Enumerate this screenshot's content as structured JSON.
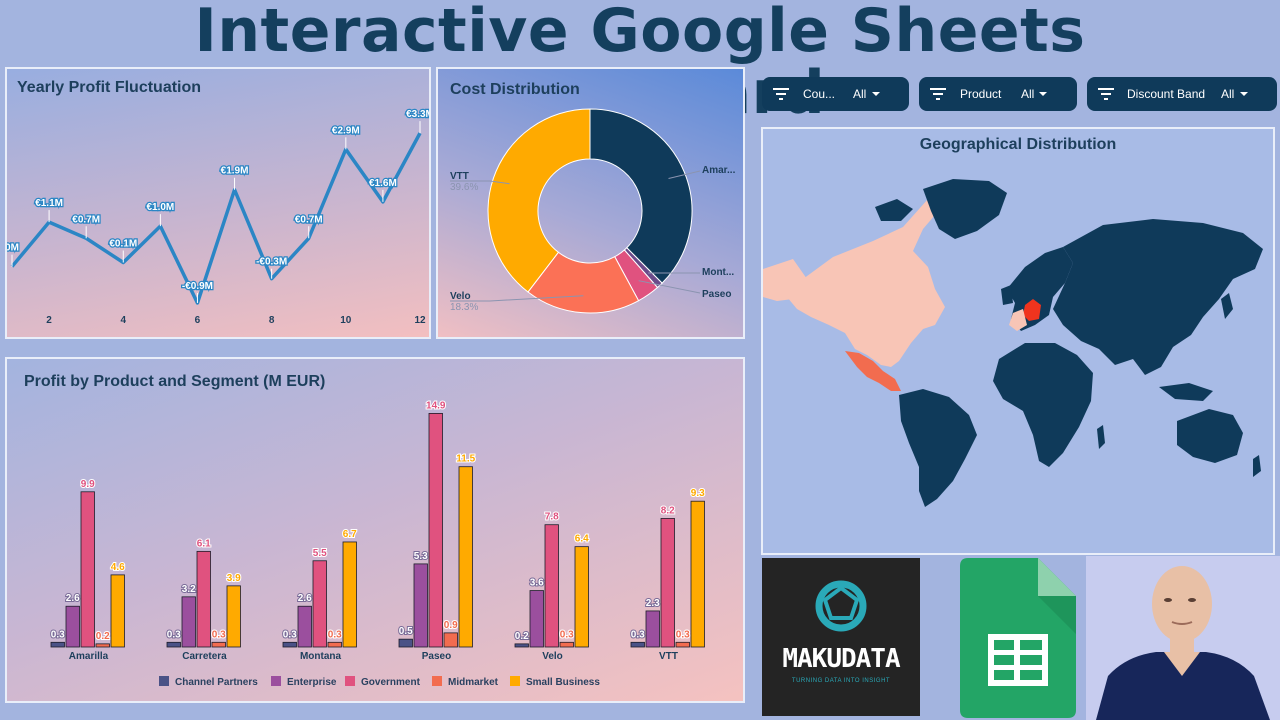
{
  "header": {
    "title": "Interactive Google Sheets Dashboard"
  },
  "filters": [
    {
      "label": "Cou...",
      "value": "All"
    },
    {
      "label": "Product",
      "value": "All"
    },
    {
      "label": "Discount Band",
      "value": "All"
    }
  ],
  "line_card": {
    "title": "Yearly Profit Fluctuation"
  },
  "donut_card": {
    "title": "Cost Distribution"
  },
  "bar_card": {
    "title": "Profit by Product and Segment (M EUR)"
  },
  "map_card": {
    "title": "Geographical Distribution"
  },
  "logo": {
    "name": "MAKUDATA",
    "tagline": "TURNING DATA INTO INSIGHT"
  },
  "colors": {
    "navy": "#0f3a5a",
    "line": "#2b86c5",
    "channel_partners": "#4a5286",
    "enterprise": "#9b4f9e",
    "government": "#e0527f",
    "midmarket": "#f26c4f",
    "small_business": "#ffaa00",
    "donut_amarilla": "#0f3a5a",
    "donut_vtt": "#ffaa00",
    "donut_velo": "#fb7156",
    "donut_paseo": "#e0527f",
    "donut_montana": "#6b4b8a"
  },
  "chart_data": [
    {
      "type": "line",
      "title": "Yearly Profit Fluctuation",
      "x": [
        1,
        2,
        3,
        4,
        5,
        6,
        7,
        8,
        9,
        10,
        11,
        12
      ],
      "values": [
        0,
        1.1,
        0.7,
        0.1,
        1.0,
        -0.9,
        1.9,
        -0.3,
        0.7,
        2.9,
        1.6,
        3.3
      ],
      "labels": [
        "0M",
        "€1.1M",
        "€0.7M",
        "€0.1M",
        "€1.0M",
        "-€0.9M",
        "€1.9M",
        "-€0.3M",
        "€0.7M",
        "€2.9M",
        "€1.6M",
        "€3.3M"
      ],
      "x_ticks": [
        2,
        4,
        6,
        8,
        10,
        12
      ],
      "ylim": [
        -1.0,
        3.6
      ]
    },
    {
      "type": "pie",
      "title": "Cost Distribution",
      "slices": [
        {
          "name": "Amar...",
          "value": 37.5,
          "pct": ""
        },
        {
          "name": "Mont...",
          "value": 1.0,
          "pct": ""
        },
        {
          "name": "Paseo",
          "value": 3.6,
          "pct": ""
        },
        {
          "name": "Velo",
          "value": 18.3,
          "pct": "18.3%"
        },
        {
          "name": "VTT",
          "value": 39.6,
          "pct": "39.6%"
        }
      ]
    },
    {
      "type": "bar",
      "title": "Profit by Product and Segment (M EUR)",
      "categories": [
        "Amarilla",
        "Carretera",
        "Montana",
        "Paseo",
        "Velo",
        "VTT"
      ],
      "series": [
        {
          "name": "Channel Partners",
          "values": [
            0.3,
            0.3,
            0.3,
            0.5,
            0.2,
            0.3
          ],
          "labels": [
            "0.3",
            "0.3",
            "0.3",
            "0.5",
            "0.2",
            "0.3"
          ]
        },
        {
          "name": "Enterprise",
          "values": [
            2.6,
            3.2,
            2.6,
            5.3,
            3.6,
            2.3
          ],
          "labels": [
            "2.6",
            "3.2",
            "2.6",
            "5.3",
            "3.6",
            "2.3"
          ]
        },
        {
          "name": "Government",
          "values": [
            9.9,
            6.1,
            5.5,
            14.9,
            7.8,
            8.2
          ],
          "labels": [
            "9.9",
            "6.1",
            "5.5",
            "14.9",
            "7.8",
            "8.2"
          ]
        },
        {
          "name": "Midmarket",
          "values": [
            0.2,
            0.3,
            0.3,
            0.9,
            0.3,
            0.3
          ],
          "labels": [
            "0.2",
            "0.3",
            "0.3",
            "0.9",
            "0.3",
            "0.3"
          ]
        },
        {
          "name": "Small Business",
          "values": [
            4.6,
            3.9,
            6.7,
            11.5,
            6.4,
            9.3
          ],
          "labels": [
            "4.6",
            "3.9",
            "6.7",
            "11.5",
            "6.4",
            "9.3"
          ]
        }
      ],
      "ylim": [
        0,
        15.5
      ],
      "legend": "bottom"
    }
  ]
}
